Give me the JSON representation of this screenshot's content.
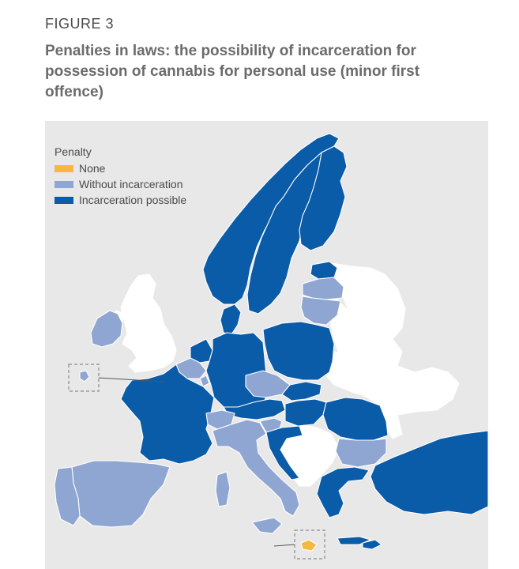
{
  "figure": {
    "label": "FIGURE 3",
    "title": "Penalties in laws: the possibility of incarceration for possession of cannabis for personal use (minor first offence)"
  },
  "legend": {
    "title": "Penalty",
    "items": [
      {
        "label": "None",
        "color": "#f5b942"
      },
      {
        "label": "Without incarceration",
        "color": "#8fa6d3"
      },
      {
        "label": "Incarceration possible",
        "color": "#0a5ba8"
      }
    ]
  },
  "colors": {
    "none": "#f5b942",
    "without": "#8fa6d3",
    "incarceration": "#0a5ba8",
    "not_covered": "#ffffff",
    "sea": "#e8e8e8"
  },
  "map": {
    "regions": [
      {
        "name": "Norway",
        "penalty": "incarceration"
      },
      {
        "name": "Sweden",
        "penalty": "incarceration"
      },
      {
        "name": "Finland",
        "penalty": "incarceration"
      },
      {
        "name": "Estonia",
        "penalty": "incarceration"
      },
      {
        "name": "Latvia",
        "penalty": "without"
      },
      {
        "name": "Lithuania",
        "penalty": "without"
      },
      {
        "name": "Denmark",
        "penalty": "incarceration"
      },
      {
        "name": "United Kingdom",
        "penalty": "not_covered"
      },
      {
        "name": "Ireland",
        "penalty": "without"
      },
      {
        "name": "Netherlands",
        "penalty": "incarceration"
      },
      {
        "name": "Belgium",
        "penalty": "without"
      },
      {
        "name": "Luxembourg",
        "penalty": "without"
      },
      {
        "name": "Germany",
        "penalty": "incarceration"
      },
      {
        "name": "Poland",
        "penalty": "incarceration"
      },
      {
        "name": "Czechia",
        "penalty": "without"
      },
      {
        "name": "Slovakia",
        "penalty": "incarceration"
      },
      {
        "name": "Austria",
        "penalty": "incarceration"
      },
      {
        "name": "Hungary",
        "penalty": "incarceration"
      },
      {
        "name": "Slovenia",
        "penalty": "without"
      },
      {
        "name": "Croatia",
        "penalty": "incarceration"
      },
      {
        "name": "France",
        "penalty": "incarceration"
      },
      {
        "name": "Switzerland",
        "penalty": "without"
      },
      {
        "name": "Italy",
        "penalty": "without"
      },
      {
        "name": "Spain",
        "penalty": "without"
      },
      {
        "name": "Portugal",
        "penalty": "without"
      },
      {
        "name": "Romania",
        "penalty": "incarceration"
      },
      {
        "name": "Bulgaria",
        "penalty": "without"
      },
      {
        "name": "Greece",
        "penalty": "incarceration"
      },
      {
        "name": "Turkey",
        "penalty": "incarceration"
      },
      {
        "name": "Cyprus",
        "penalty": "incarceration"
      },
      {
        "name": "Malta",
        "penalty": "none"
      },
      {
        "name": "Azores",
        "penalty": "without"
      },
      {
        "name": "Western Balkans",
        "penalty": "not_covered"
      },
      {
        "name": "Belarus",
        "penalty": "not_covered"
      },
      {
        "name": "Ukraine",
        "penalty": "not_covered"
      },
      {
        "name": "Moldova",
        "penalty": "not_covered"
      }
    ]
  }
}
